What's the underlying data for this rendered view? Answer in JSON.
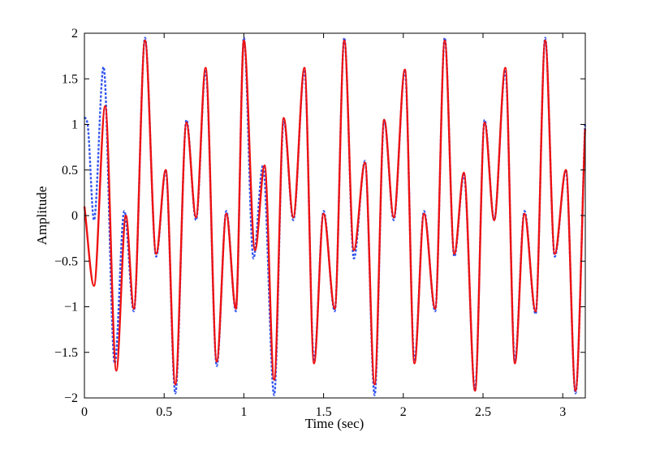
{
  "chart_data": {
    "type": "line",
    "xlabel": "Time (sec)",
    "ylabel": "Amplitude",
    "xlim": [
      0,
      3.1416
    ],
    "ylim": [
      -2,
      2
    ],
    "xticks": [
      0,
      0.5,
      1,
      1.5,
      2,
      2.5,
      3
    ],
    "xtick_labels": [
      "0",
      "0.5",
      "1",
      "1.5",
      "2",
      "2.5",
      "3"
    ],
    "yticks": [
      -2,
      -1.5,
      -1,
      -0.5,
      0,
      0.5,
      1,
      1.5,
      2
    ],
    "ytick_labels": [
      "−2",
      "−1.5",
      "−1",
      "−0.5",
      "0",
      "0.5",
      "1",
      "1.5",
      "2"
    ],
    "grid": false,
    "series": [
      {
        "style": "dotted",
        "color": "#3355ee",
        "x": [
          0,
          0.02,
          0.06,
          0.12,
          0.19,
          0.25,
          0.31,
          0.38,
          0.45,
          0.51,
          0.57,
          0.64,
          0.7,
          0.76,
          0.83,
          0.89,
          0.95,
          1.0,
          1.06,
          1.12,
          1.19,
          1.25,
          1.31,
          1.38,
          1.44,
          1.5,
          1.57,
          1.63,
          1.69,
          1.76,
          1.82,
          1.88,
          1.94,
          2.01,
          2.07,
          2.13,
          2.2,
          2.26,
          2.32,
          2.38,
          2.45,
          2.51,
          2.57,
          2.64,
          2.7,
          2.76,
          2.83,
          2.89,
          2.95,
          3.02,
          3.08,
          3.14
        ],
        "y": [
          1.08,
          1.0,
          -0.05,
          1.63,
          -1.62,
          0.05,
          -1.05,
          1.95,
          -0.45,
          0.5,
          -1.95,
          1.05,
          -0.05,
          1.6,
          -1.65,
          0.05,
          -1.05,
          1.95,
          -0.47,
          0.55,
          -1.97,
          1.05,
          -0.05,
          1.6,
          -1.6,
          0.05,
          -1.05,
          1.95,
          -0.47,
          0.6,
          -1.97,
          1.05,
          -0.05,
          1.6,
          -1.6,
          0.05,
          -1.05,
          1.95,
          -0.45,
          0.45,
          -1.92,
          1.05,
          -0.05,
          1.6,
          -1.6,
          0.05,
          -1.08,
          1.95,
          -0.45,
          0.5,
          -1.95,
          1.0
        ]
      },
      {
        "style": "solid",
        "color": "#ee1111",
        "x": [
          0,
          0.06,
          0.13,
          0.2,
          0.26,
          0.31,
          0.38,
          0.45,
          0.51,
          0.57,
          0.64,
          0.7,
          0.76,
          0.83,
          0.89,
          0.95,
          1.0,
          1.07,
          1.13,
          1.19,
          1.25,
          1.31,
          1.38,
          1.44,
          1.5,
          1.57,
          1.63,
          1.69,
          1.76,
          1.82,
          1.88,
          1.94,
          2.01,
          2.07,
          2.13,
          2.2,
          2.26,
          2.32,
          2.38,
          2.45,
          2.51,
          2.57,
          2.64,
          2.7,
          2.76,
          2.83,
          2.89,
          2.95,
          3.02,
          3.08,
          3.14
        ],
        "y": [
          0.1,
          -0.77,
          1.2,
          -1.7,
          0.0,
          -1.02,
          1.92,
          -0.42,
          0.5,
          -1.85,
          1.02,
          -0.02,
          1.62,
          -1.6,
          0.02,
          -1.02,
          1.92,
          -0.38,
          0.55,
          -1.8,
          1.07,
          -0.02,
          1.62,
          -1.62,
          0.02,
          -1.02,
          1.92,
          -0.38,
          0.58,
          -1.85,
          1.05,
          -0.02,
          1.6,
          -1.62,
          0.02,
          -1.02,
          1.92,
          -0.42,
          0.47,
          -1.92,
          1.02,
          -0.05,
          1.62,
          -1.62,
          0.02,
          -1.05,
          1.92,
          -0.42,
          0.5,
          -1.92,
          0.95
        ]
      }
    ]
  }
}
